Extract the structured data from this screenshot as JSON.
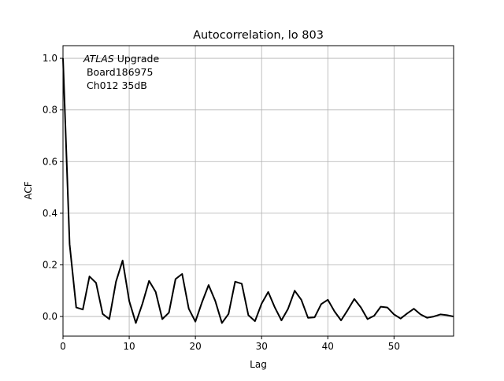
{
  "chart_data": {
    "type": "line",
    "title": "Autocorrelation, lo 803",
    "xlabel": "Lag",
    "ylabel": "ACF",
    "xlim": [
      0,
      59
    ],
    "ylim": [
      -0.076,
      1.049
    ],
    "xticks": [
      0,
      10,
      20,
      30,
      40,
      50
    ],
    "yticks": [
      0.0,
      0.2,
      0.4,
      0.6,
      0.8,
      1.0
    ],
    "xtick_labels": [
      "0",
      "10",
      "20",
      "30",
      "40",
      "50"
    ],
    "ytick_labels": [
      "0.0",
      "0.2",
      "0.4",
      "0.6",
      "0.8",
      "1.0"
    ],
    "grid": true,
    "line_color": "#000000",
    "annotation": {
      "italic": "ATLAS",
      "line1_rest": " Upgrade",
      "line2": " Board186975",
      "line3": " Ch012 35dB"
    },
    "x": [
      0,
      1,
      2,
      3,
      4,
      5,
      6,
      7,
      8,
      9,
      10,
      11,
      12,
      13,
      14,
      15,
      16,
      17,
      18,
      19,
      20,
      21,
      22,
      23,
      24,
      25,
      26,
      27,
      28,
      29,
      30,
      31,
      32,
      33,
      34,
      35,
      36,
      37,
      38,
      39,
      40,
      41,
      42,
      43,
      44,
      45,
      46,
      47,
      48,
      49,
      50,
      51,
      52,
      53,
      54,
      55,
      56,
      57,
      58,
      59
    ],
    "y": [
      1.0,
      0.28,
      0.035,
      0.027,
      0.155,
      0.13,
      0.01,
      -0.01,
      0.135,
      0.217,
      0.06,
      -0.025,
      0.05,
      0.138,
      0.095,
      -0.01,
      0.015,
      0.145,
      0.165,
      0.03,
      -0.02,
      0.055,
      0.122,
      0.06,
      -0.025,
      0.01,
      0.135,
      0.127,
      0.005,
      -0.018,
      0.05,
      0.095,
      0.035,
      -0.015,
      0.03,
      0.1,
      0.065,
      -0.005,
      -0.003,
      0.048,
      0.065,
      0.02,
      -0.015,
      0.025,
      0.068,
      0.035,
      -0.01,
      0.003,
      0.038,
      0.035,
      0.008,
      -0.008,
      0.012,
      0.03,
      0.008,
      -0.005,
      0.0,
      0.008,
      0.005,
      0.0
    ]
  }
}
